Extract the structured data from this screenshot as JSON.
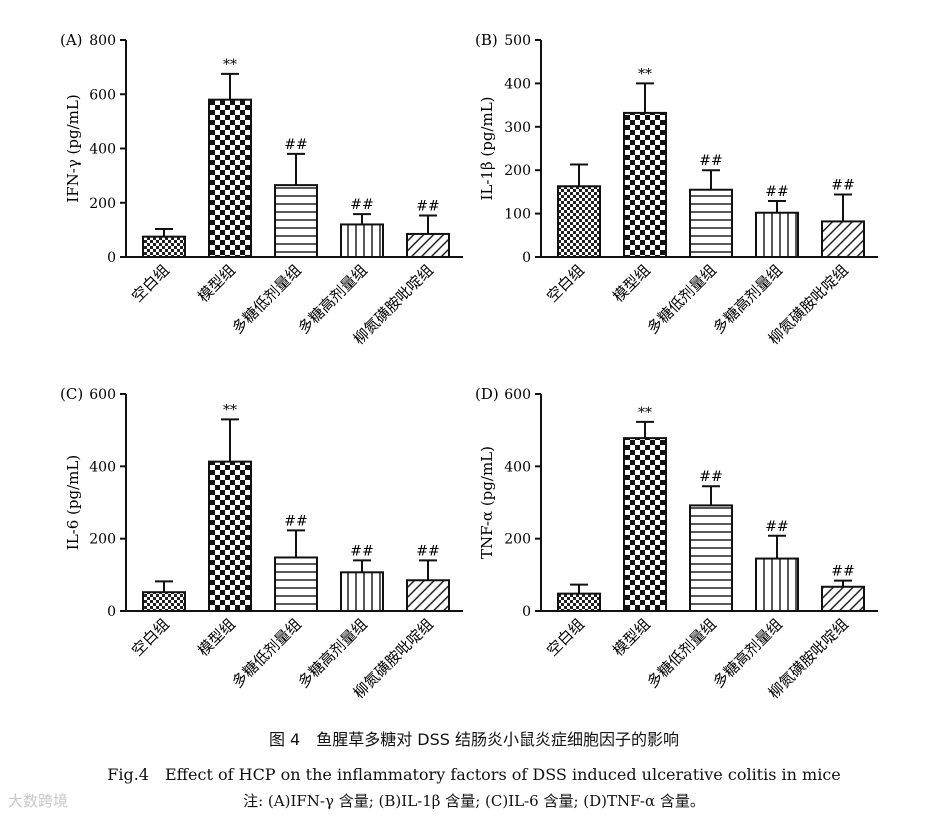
{
  "caption": {
    "zh": "图 4　鱼腥草多糖对 DSS 结肠炎小鼠炎症细胞因子的影响",
    "en": "Fig.4　Effect of HCP on the inflammatory factors of DSS induced ulcerative colitis in mice",
    "note": "注: (A)IFN-γ 含量; (B)IL-1β 含量; (C)IL-6 含量; (D)TNF-α 含量。"
  },
  "watermark": "大数跨境",
  "chart_data": [
    {
      "type": "bar",
      "panel": "(A)",
      "ylabel": "IFN-γ (pg/mL)",
      "ylim": [
        0,
        800
      ],
      "yticks": [
        0,
        200,
        400,
        600,
        800
      ],
      "categories": [
        "空白组",
        "模型组",
        "多糖低剂量组",
        "多糖高剂量组",
        "柳氮磺胺吡啶组"
      ],
      "values": [
        75,
        580,
        265,
        120,
        85
      ],
      "errors": [
        28,
        95,
        115,
        38,
        68
      ],
      "significance": [
        "",
        "**",
        "##",
        "##",
        "##"
      ],
      "patterns": [
        "check-small",
        "check-large",
        "horizontal",
        "vertical",
        "diagonal"
      ]
    },
    {
      "type": "bar",
      "panel": "(B)",
      "ylabel": "IL-1β (pg/mL)",
      "ylim": [
        0,
        500
      ],
      "yticks": [
        0,
        100,
        200,
        300,
        400,
        500
      ],
      "categories": [
        "空白组",
        "模型组",
        "多糖低剂量组",
        "多糖高剂量组",
        "柳氮磺胺吡啶组"
      ],
      "values": [
        163,
        332,
        155,
        102,
        82
      ],
      "errors": [
        50,
        68,
        45,
        27,
        62
      ],
      "significance": [
        "",
        "**",
        "##",
        "##",
        "##"
      ],
      "patterns": [
        "check-small",
        "check-large",
        "horizontal",
        "vertical",
        "diagonal"
      ]
    },
    {
      "type": "bar",
      "panel": "(C)",
      "ylabel": "IL-6 (pg/mL)",
      "ylim": [
        0,
        600
      ],
      "yticks": [
        0,
        200,
        400,
        600
      ],
      "categories": [
        "空白组",
        "模型组",
        "多糖低剂量组",
        "多糖高剂量组",
        "柳氮磺胺吡啶组"
      ],
      "values": [
        52,
        413,
        148,
        107,
        85
      ],
      "errors": [
        30,
        117,
        75,
        33,
        55
      ],
      "significance": [
        "",
        "**",
        "##",
        "##",
        "##"
      ],
      "patterns": [
        "check-small",
        "check-large",
        "horizontal",
        "vertical",
        "diagonal"
      ]
    },
    {
      "type": "bar",
      "panel": "(D)",
      "ylabel": "TNF-α (pg/mL)",
      "ylim": [
        0,
        600
      ],
      "yticks": [
        0,
        200,
        400,
        600
      ],
      "categories": [
        "空白组",
        "模型组",
        "多糖低剂量组",
        "多糖高剂量组",
        "柳氮磺胺吡啶组"
      ],
      "values": [
        48,
        478,
        292,
        145,
        67
      ],
      "errors": [
        25,
        45,
        53,
        63,
        17
      ],
      "significance": [
        "",
        "**",
        "##",
        "##",
        "##"
      ],
      "patterns": [
        "check-small",
        "check-large",
        "horizontal",
        "vertical",
        "diagonal"
      ]
    }
  ]
}
